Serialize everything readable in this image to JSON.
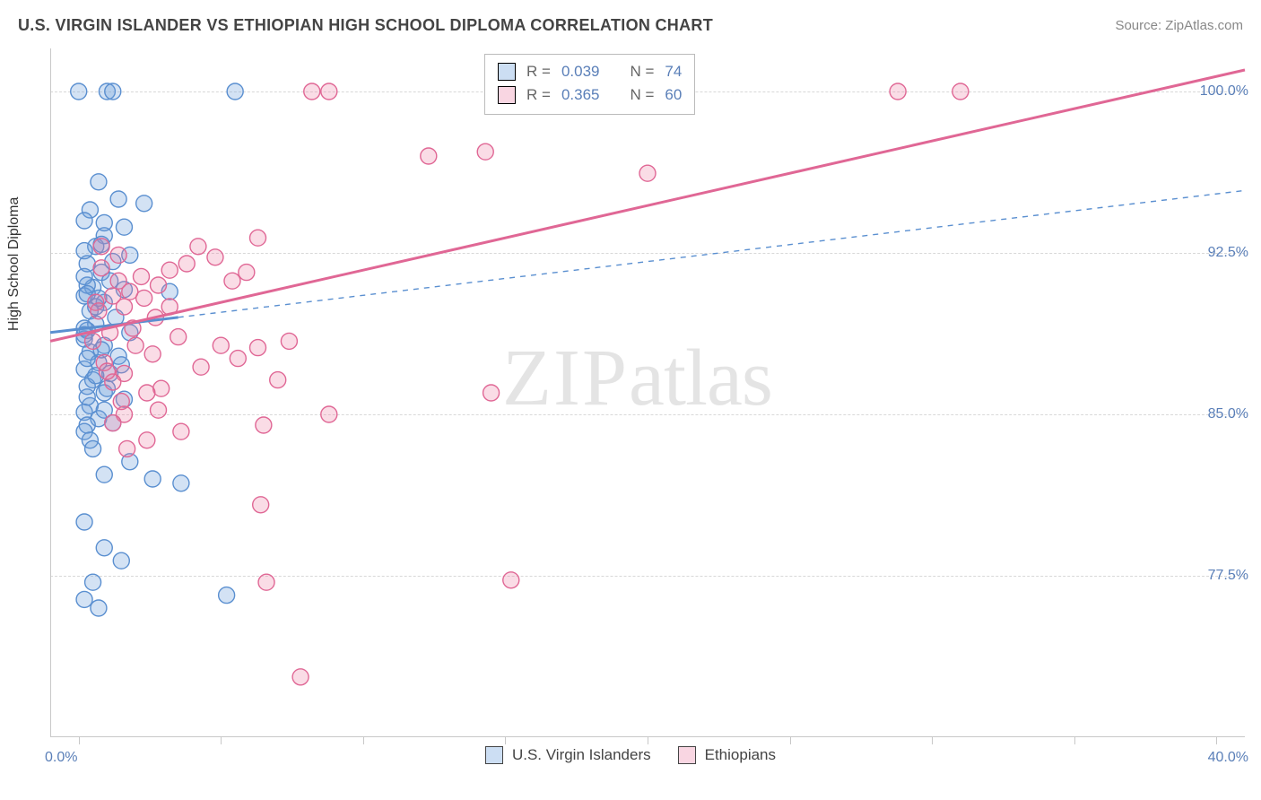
{
  "header": {
    "title": "U.S. VIRGIN ISLANDER VS ETHIOPIAN HIGH SCHOOL DIPLOMA CORRELATION CHART",
    "source": "Source: ZipAtlas.com"
  },
  "watermark": {
    "part1": "ZIP",
    "part2": "atlas"
  },
  "chart": {
    "type": "scatter",
    "ylabel": "High School Diploma",
    "xlim": [
      -1,
      41
    ],
    "ylim": [
      70,
      102
    ],
    "xticks": [
      0,
      40
    ],
    "xtick_labels": [
      "0.0%",
      "40.0%"
    ],
    "xtick_minor": [
      5,
      10,
      15,
      20,
      25,
      30,
      35
    ],
    "yticks": [
      77.5,
      85.0,
      92.5,
      100.0
    ],
    "ytick_labels": [
      "77.5%",
      "85.0%",
      "92.5%",
      "100.0%"
    ],
    "grid_color": "#d8d8d8",
    "axis_color": "#c8c8c8",
    "background": "#ffffff",
    "marker_radius": 9,
    "marker_stroke_width": 1.4,
    "series": [
      {
        "id": "usvi",
        "label": "U.S. Virgin Islanders",
        "color_fill": "rgba(110,160,220,0.30)",
        "color_stroke": "#5a8fd0",
        "R": "0.039",
        "N": "74",
        "trend": {
          "x1": -1,
          "y1": 88.8,
          "x2": 41,
          "y2": 95.4,
          "solid_until_x": 3.5,
          "solid_width": 3,
          "dash_width": 1.4,
          "dash": "6,6"
        },
        "points": [
          [
            0,
            100
          ],
          [
            1,
            100
          ],
          [
            1.2,
            100
          ],
          [
            5.5,
            100
          ],
          [
            0.7,
            95.8
          ],
          [
            1.4,
            95
          ],
          [
            2.3,
            94.8
          ],
          [
            0.4,
            94.5
          ],
          [
            0.2,
            94
          ],
          [
            1.6,
            93.7
          ],
          [
            0.9,
            93.3
          ],
          [
            0.6,
            92.8
          ],
          [
            1.8,
            92.4
          ],
          [
            0.3,
            92
          ],
          [
            0.8,
            91.6
          ],
          [
            1.1,
            91.2
          ],
          [
            0.5,
            90.9
          ],
          [
            1.6,
            90.8
          ],
          [
            3.2,
            90.7
          ],
          [
            0.2,
            90.5
          ],
          [
            0.9,
            90.2
          ],
          [
            0.4,
            89.8
          ],
          [
            1.3,
            89.5
          ],
          [
            0.6,
            89.2
          ],
          [
            0.3,
            88.9
          ],
          [
            1.8,
            88.8
          ],
          [
            0.2,
            88.5
          ],
          [
            0.9,
            88.2
          ],
          [
            0.4,
            87.9
          ],
          [
            1.4,
            87.7
          ],
          [
            0.7,
            87.4
          ],
          [
            0.2,
            87.1
          ],
          [
            1.1,
            86.9
          ],
          [
            0.5,
            86.6
          ],
          [
            0.3,
            86.3
          ],
          [
            0.9,
            86.0
          ],
          [
            1.6,
            85.7
          ],
          [
            0.4,
            85.4
          ],
          [
            0.2,
            85.1
          ],
          [
            1.5,
            87.3
          ],
          [
            0.7,
            84.8
          ],
          [
            0.3,
            84.5
          ],
          [
            0.2,
            84.2
          ],
          [
            1.8,
            82.8
          ],
          [
            0.9,
            82.2
          ],
          [
            2.6,
            82.0
          ],
          [
            3.6,
            81.8
          ],
          [
            0.2,
            80.0
          ],
          [
            0.9,
            78.8
          ],
          [
            1.5,
            78.2
          ],
          [
            0.5,
            77.2
          ],
          [
            5.2,
            76.6
          ],
          [
            0.2,
            76.4
          ],
          [
            0.7,
            76.0
          ],
          [
            0.9,
            93.9
          ],
          [
            1.2,
            92.1
          ],
          [
            0.3,
            91.0
          ],
          [
            0.6,
            90.0
          ],
          [
            0.2,
            89.0
          ],
          [
            1.0,
            86.2
          ],
          [
            0.4,
            83.8
          ],
          [
            0.2,
            91.4
          ],
          [
            0.8,
            88.0
          ],
          [
            0.3,
            85.8
          ],
          [
            1.2,
            84.6
          ],
          [
            0.5,
            83.4
          ],
          [
            0.2,
            92.6
          ],
          [
            0.7,
            90.4
          ],
          [
            0.3,
            87.6
          ],
          [
            0.9,
            85.2
          ],
          [
            0.2,
            88.7
          ],
          [
            0.6,
            86.8
          ],
          [
            0.3,
            90.6
          ],
          [
            0.8,
            92.9
          ]
        ]
      },
      {
        "id": "eth",
        "label": "Ethiopians",
        "color_fill": "rgba(235,120,160,0.26)",
        "color_stroke": "#e06795",
        "R": "0.365",
        "N": "60",
        "trend": {
          "x1": -1,
          "y1": 88.4,
          "x2": 41,
          "y2": 101.0,
          "solid_until_x": 41,
          "solid_width": 3,
          "dash_width": 0,
          "dash": ""
        },
        "points": [
          [
            8.2,
            100
          ],
          [
            8.8,
            100
          ],
          [
            28.8,
            100
          ],
          [
            31,
            100
          ],
          [
            12.3,
            97
          ],
          [
            14.3,
            97.2
          ],
          [
            20,
            96.2
          ],
          [
            6.3,
            93.2
          ],
          [
            4.2,
            92.8
          ],
          [
            4.8,
            92.3
          ],
          [
            5.9,
            91.6
          ],
          [
            3.2,
            91.7
          ],
          [
            5.4,
            91.2
          ],
          [
            2.8,
            91.0
          ],
          [
            1.4,
            91.2
          ],
          [
            1.8,
            90.7
          ],
          [
            2.3,
            90.4
          ],
          [
            3.2,
            90.0
          ],
          [
            1.6,
            90.0
          ],
          [
            2.7,
            89.5
          ],
          [
            1.2,
            90.5
          ],
          [
            1.9,
            89.0
          ],
          [
            3.5,
            88.6
          ],
          [
            5.0,
            88.2
          ],
          [
            6.3,
            88.1
          ],
          [
            7.4,
            88.4
          ],
          [
            5.6,
            87.6
          ],
          [
            4.3,
            87.2
          ],
          [
            2.6,
            87.8
          ],
          [
            7.0,
            86.6
          ],
          [
            1.6,
            86.9
          ],
          [
            2.9,
            86.2
          ],
          [
            1.2,
            86.5
          ],
          [
            14.5,
            86.0
          ],
          [
            8.8,
            85.0
          ],
          [
            6.5,
            84.5
          ],
          [
            2.8,
            85.2
          ],
          [
            1.6,
            85.0
          ],
          [
            3.6,
            84.2
          ],
          [
            1.2,
            84.6
          ],
          [
            2.4,
            83.8
          ],
          [
            1.7,
            83.4
          ],
          [
            6.6,
            77.2
          ],
          [
            15.2,
            77.3
          ],
          [
            6.4,
            80.8
          ],
          [
            7.8,
            72.8
          ],
          [
            0.8,
            91.8
          ],
          [
            1.4,
            92.4
          ],
          [
            0.6,
            90.2
          ],
          [
            1.1,
            88.8
          ],
          [
            2.0,
            88.2
          ],
          [
            0.9,
            87.4
          ],
          [
            1.5,
            85.6
          ],
          [
            0.7,
            89.8
          ],
          [
            2.2,
            91.4
          ],
          [
            3.8,
            92.0
          ],
          [
            0.5,
            88.4
          ],
          [
            1.0,
            87.0
          ],
          [
            2.4,
            86.0
          ],
          [
            0.8,
            92.8
          ]
        ]
      }
    ]
  },
  "legend_top": {
    "r_label": "R =",
    "n_label": "N ="
  },
  "legend_bottom": {
    "items": [
      {
        "series": "usvi"
      },
      {
        "series": "eth"
      }
    ]
  }
}
